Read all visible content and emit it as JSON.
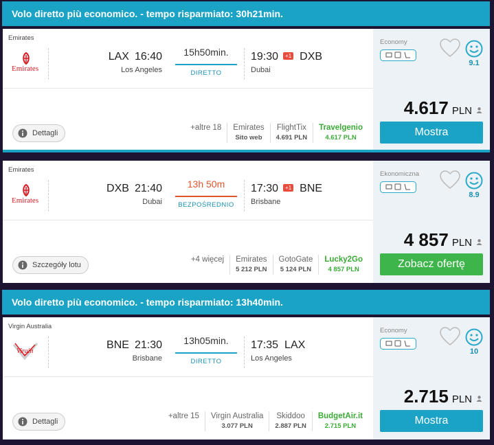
{
  "cards": [
    {
      "header": "Volo diretto più economico. - tempo risparmiato: 30h21min.",
      "airline": "Emirates",
      "logo": "Emirates",
      "departure": {
        "code": "LAX",
        "time": "16:40",
        "city": "Los Angeles"
      },
      "duration": "15h50min.",
      "flight_type": "DIRETTO",
      "arrival": {
        "time": "19:30",
        "day_offset": "+1",
        "code": "DXB",
        "city": "Dubai"
      },
      "cabin": "Economy",
      "score": "9.1",
      "price": "4.617",
      "currency": "PLN",
      "details_button": "Dettagli",
      "more_providers": "+altre 18",
      "providers": [
        {
          "name": "Emirates",
          "price": "Sito web"
        },
        {
          "name": "FlightTix",
          "price": "4.691 PLN"
        },
        {
          "name": "Travelgenio",
          "price": "4.617 PLN"
        }
      ],
      "book_button": "Mostra"
    },
    {
      "airline": "Emirates",
      "logo": "Emirates",
      "departure": {
        "code": "DXB",
        "time": "21:40",
        "city": "Dubai"
      },
      "duration": "13h 50m",
      "flight_type": "BEZPOŚREDNIO",
      "arrival": {
        "time": "17:30",
        "day_offset": "+1",
        "code": "BNE",
        "city": "Brisbane"
      },
      "cabin": "Ekonomiczna",
      "score": "8.9",
      "price": "4 857",
      "currency": "PLN",
      "details_button": "Szczegóły lotu",
      "more_providers": "+4 więcej",
      "providers": [
        {
          "name": "Emirates",
          "price": "5 212 PLN"
        },
        {
          "name": "GotoGate",
          "price": "5 124 PLN"
        },
        {
          "name": "Lucky2Go",
          "price": "4 857 PLN"
        }
      ],
      "book_button": "Zobacz ofertę"
    },
    {
      "header": "Volo diretto più economico. - tempo risparmiato: 13h40min.",
      "airline": "Virgin Australia",
      "logo": "Virgin",
      "departure": {
        "code": "BNE",
        "time": "21:30",
        "city": "Brisbane"
      },
      "duration": "13h05min.",
      "flight_type": "DIRETTO",
      "arrival": {
        "time": "17:35",
        "code": "LAX",
        "city": "Los Angeles"
      },
      "cabin": "Economy",
      "score": "10",
      "price": "2.715",
      "currency": "PLN",
      "details_button": "Dettagli",
      "more_providers": "+altre 15",
      "providers": [
        {
          "name": "Virgin Australia",
          "price": "3.077 PLN"
        },
        {
          "name": "Skiddoo",
          "price": "2.887 PLN"
        },
        {
          "name": "BudgetAir.it",
          "price": "2.715 PLN"
        }
      ],
      "book_button": "Mostra"
    }
  ]
}
